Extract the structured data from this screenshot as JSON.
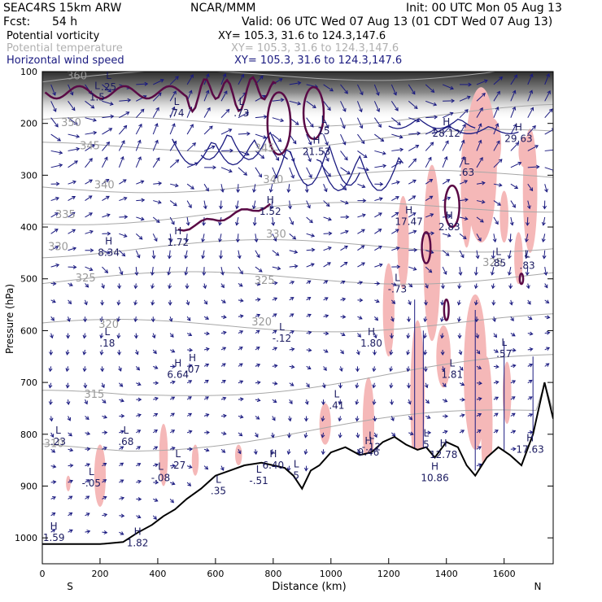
{
  "header": {
    "model": "SEAC4RS 15km ARW",
    "source": "NCAR/MMM",
    "init": "Init: 00 UTC Mon 05 Aug 13",
    "fcst_label": "Fcst:",
    "fcst_value": "54 h",
    "valid": "Valid: 06 UTC Wed 07 Aug 13 (01 CDT Wed 07 Aug 13)",
    "fields": [
      {
        "name": "Potential vorticity",
        "xy": "XY= 105.3, 31.6 to 124.3,147.6",
        "color": "#000000"
      },
      {
        "name": "Potential temperature",
        "xy": "XY= 105.3, 31.6 to 124.3,147.6",
        "color": "#b0b0b0"
      },
      {
        "name": "Horizontal wind speed",
        "xy": "XY= 105.3, 31.6 to 124.3,147.6",
        "color": "#1a1a80"
      }
    ]
  },
  "chart_data": {
    "type": "cross-section",
    "xlabel": "Distance (km)",
    "ylabel": "Pressure (hPa)",
    "xlim": [
      0,
      1770
    ],
    "ylim": [
      1050,
      100
    ],
    "x_ticks": [
      0,
      200,
      400,
      600,
      800,
      1000,
      1200,
      1400,
      1600
    ],
    "y_ticks": [
      100,
      200,
      300,
      400,
      500,
      600,
      700,
      800,
      900,
      1000
    ],
    "x_endpoints": {
      "left": "S",
      "right": "N"
    },
    "colors": {
      "pv": "#5a0a46",
      "theta": "#a8a8a8",
      "wind": "#1a1a80",
      "shade": "#f5b8b8",
      "terrain": "#000000"
    },
    "theta_labels": [
      {
        "text": "360",
        "x": 120,
        "p": 115
      },
      {
        "text": "350",
        "x": 100,
        "p": 205
      },
      {
        "text": "345",
        "x": 165,
        "p": 250
      },
      {
        "text": "340",
        "x": 215,
        "p": 325
      },
      {
        "text": "335",
        "x": 80,
        "p": 383
      },
      {
        "text": "330",
        "x": 55,
        "p": 445
      },
      {
        "text": "330",
        "x": 810,
        "p": 420
      },
      {
        "text": "325",
        "x": 150,
        "p": 505
      },
      {
        "text": "325",
        "x": 770,
        "p": 510
      },
      {
        "text": "325",
        "x": 1560,
        "p": 475
      },
      {
        "text": "320",
        "x": 230,
        "p": 595
      },
      {
        "text": "320",
        "x": 760,
        "p": 590
      },
      {
        "text": "315",
        "x": 180,
        "p": 730
      },
      {
        "text": "310",
        "x": 40,
        "p": 825
      },
      {
        "text": "345",
        "x": 770,
        "p": 255
      },
      {
        "text": "340",
        "x": 800,
        "p": 315
      }
    ],
    "extrema": [
      {
        "kind": "L",
        "value": "1.5",
        "x": 190,
        "p": 145
      },
      {
        "kind": "L",
        "value": ".25",
        "x": 230,
        "p": 125
      },
      {
        "kind": "L",
        "value": ".74",
        "x": 465,
        "p": 175
      },
      {
        "kind": "L",
        "value": ".73",
        "x": 690,
        "p": 175
      },
      {
        "kind": "H",
        "value": "21.53",
        "x": 950,
        "p": 250
      },
      {
        "kind": "L",
        "value": "15",
        "x": 975,
        "p": 210
      },
      {
        "kind": "H",
        "value": "28.12",
        "x": 1400,
        "p": 215
      },
      {
        "kind": "H",
        "value": "29.63",
        "x": 1650,
        "p": 225
      },
      {
        "kind": "L",
        "value": ".63",
        "x": 1470,
        "p": 290
      },
      {
        "kind": "H",
        "value": "1.52",
        "x": 790,
        "p": 365
      },
      {
        "kind": "H",
        "value": "17.47",
        "x": 1270,
        "p": 385
      },
      {
        "kind": "H",
        "value": "2.83",
        "x": 1410,
        "p": 395
      },
      {
        "kind": "H",
        "value": "1.72",
        "x": 470,
        "p": 425
      },
      {
        "kind": "H",
        "value": "8.34",
        "x": 230,
        "p": 445
      },
      {
        "kind": "L",
        "value": ".85",
        "x": 1580,
        "p": 465
      },
      {
        "kind": "L",
        "value": ".83",
        "x": 1680,
        "p": 470
      },
      {
        "kind": "L",
        "value": "-.73",
        "x": 1230,
        "p": 515
      },
      {
        "kind": "L",
        "value": ".18",
        "x": 225,
        "p": 620
      },
      {
        "kind": "L",
        "value": "-.12",
        "x": 830,
        "p": 610
      },
      {
        "kind": "H",
        "value": "1.80",
        "x": 1140,
        "p": 620
      },
      {
        "kind": "L",
        "value": ".57",
        "x": 1600,
        "p": 640
      },
      {
        "kind": "H",
        "value": "6.64",
        "x": 470,
        "p": 680
      },
      {
        "kind": "H",
        "value": ".07",
        "x": 520,
        "p": 670
      },
      {
        "kind": "L",
        "value": "1.81",
        "x": 1420,
        "p": 680
      },
      {
        "kind": "L",
        "value": ".41",
        "x": 1020,
        "p": 740
      },
      {
        "kind": "L",
        "value": ".23",
        "x": 55,
        "p": 810
      },
      {
        "kind": "L",
        "value": ".68",
        "x": 290,
        "p": 810
      },
      {
        "kind": "H",
        "value": "9.46",
        "x": 1130,
        "p": 830
      },
      {
        "kind": "L",
        "value": "-.12",
        "x": 1140,
        "p": 820
      },
      {
        "kind": "L",
        "value": "5",
        "x": 1330,
        "p": 815
      },
      {
        "kind": "H",
        "value": "12.78",
        "x": 1390,
        "p": 835
      },
      {
        "kind": "H",
        "value": "10.86",
        "x": 1360,
        "p": 880
      },
      {
        "kind": "H",
        "value": "17.63",
        "x": 1690,
        "p": 825
      },
      {
        "kind": "L",
        "value": ".27",
        "x": 470,
        "p": 855
      },
      {
        "kind": "H",
        "value": "6.40",
        "x": 800,
        "p": 855
      },
      {
        "kind": "L",
        "value": "-.08",
        "x": 410,
        "p": 880
      },
      {
        "kind": "L",
        "value": "-.05",
        "x": 170,
        "p": 890
      },
      {
        "kind": "L",
        "value": "-.51",
        "x": 750,
        "p": 885
      },
      {
        "kind": "L",
        "value": "5",
        "x": 880,
        "p": 875
      },
      {
        "kind": "L",
        "value": ".35",
        "x": 610,
        "p": 905
      },
      {
        "kind": "H",
        "value": "1.59",
        "x": 40,
        "p": 995
      },
      {
        "kind": "H",
        "value": "1.82",
        "x": 330,
        "p": 1005
      }
    ],
    "terrain": [
      [
        0,
        1012
      ],
      [
        100,
        1012
      ],
      [
        200,
        1012
      ],
      [
        280,
        1008
      ],
      [
        330,
        990
      ],
      [
        380,
        975
      ],
      [
        420,
        958
      ],
      [
        460,
        945
      ],
      [
        500,
        925
      ],
      [
        550,
        905
      ],
      [
        600,
        880
      ],
      [
        650,
        870
      ],
      [
        700,
        860
      ],
      [
        760,
        855
      ],
      [
        800,
        860
      ],
      [
        840,
        865
      ],
      [
        870,
        880
      ],
      [
        900,
        905
      ],
      [
        930,
        870
      ],
      [
        960,
        860
      ],
      [
        1000,
        835
      ],
      [
        1050,
        825
      ],
      [
        1100,
        840
      ],
      [
        1140,
        835
      ],
      [
        1180,
        815
      ],
      [
        1220,
        805
      ],
      [
        1260,
        820
      ],
      [
        1300,
        830
      ],
      [
        1330,
        825
      ],
      [
        1360,
        845
      ],
      [
        1400,
        815
      ],
      [
        1440,
        825
      ],
      [
        1470,
        860
      ],
      [
        1500,
        880
      ],
      [
        1540,
        845
      ],
      [
        1580,
        825
      ],
      [
        1620,
        840
      ],
      [
        1660,
        860
      ],
      [
        1700,
        800
      ],
      [
        1740,
        700
      ],
      [
        1770,
        770
      ]
    ]
  }
}
